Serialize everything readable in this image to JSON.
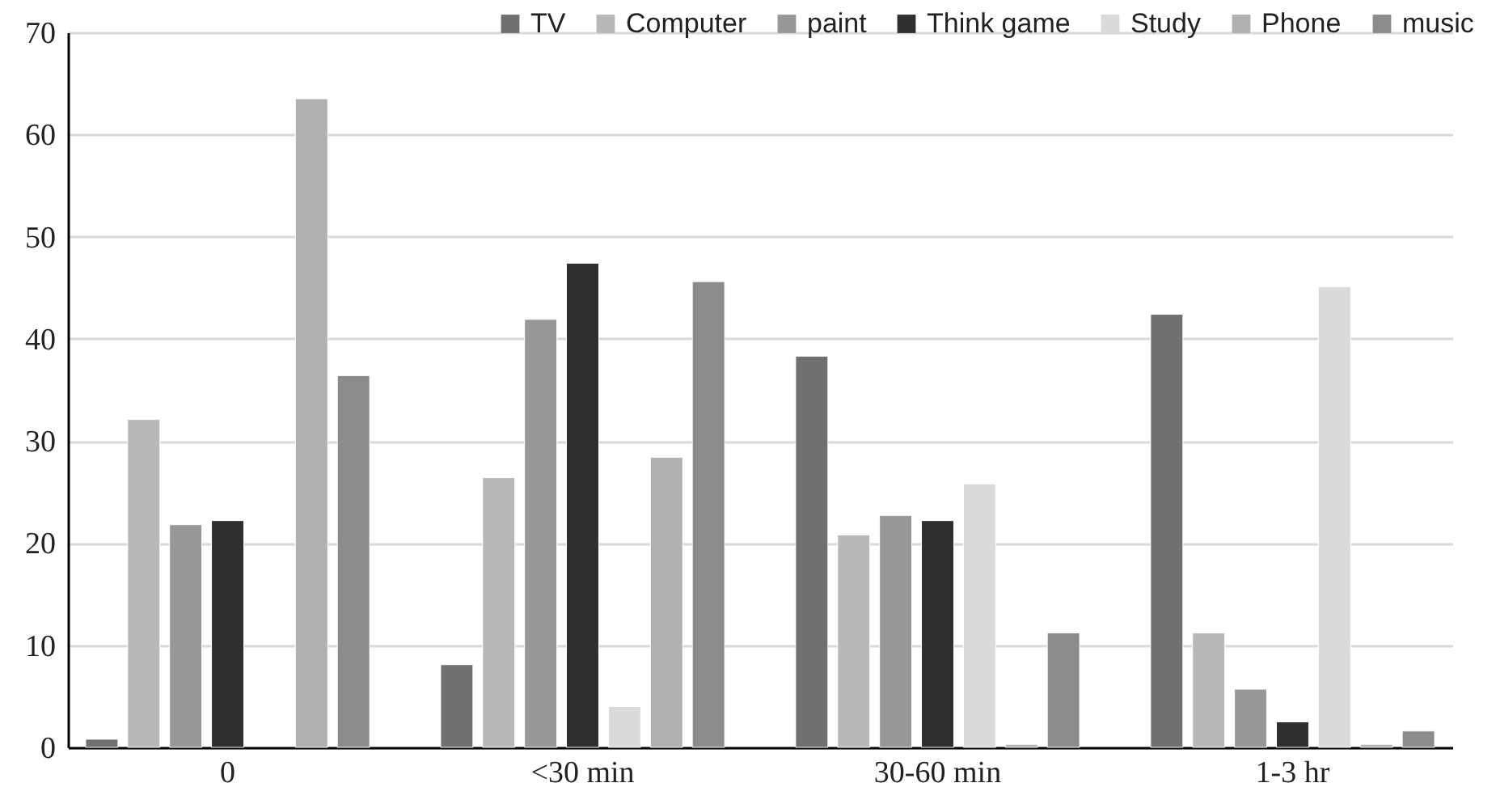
{
  "chart_data": {
    "type": "bar",
    "categories": [
      "0",
      "<30 min",
      "30-60 min",
      "1-3 hr"
    ],
    "series": [
      {
        "name": "TV",
        "color": "#707070",
        "values": [
          0.8,
          8.1,
          38.3,
          42.4
        ]
      },
      {
        "name": "Computer",
        "color": "#b8b8b8",
        "values": [
          32.1,
          26.4,
          20.8,
          11.2
        ]
      },
      {
        "name": "paint",
        "color": "#989898",
        "values": [
          21.8,
          41.9,
          22.7,
          5.7
        ]
      },
      {
        "name": "Think game",
        "color": "#2f2f2f",
        "values": [
          22.2,
          47.4,
          22.2,
          2.5
        ]
      },
      {
        "name": "Study",
        "color": "#dadada",
        "values": [
          null,
          4.0,
          25.8,
          45.1
        ]
      },
      {
        "name": "Phone",
        "color": "#b0b0b0",
        "values": [
          63.5,
          28.4,
          0.3,
          0.3
        ]
      },
      {
        "name": "music",
        "color": "#8c8c8c",
        "values": [
          36.4,
          45.6,
          11.2,
          1.6
        ]
      }
    ],
    "ylim": [
      0,
      70
    ],
    "yticks": [
      0,
      10,
      20,
      30,
      40,
      50,
      60,
      70
    ],
    "grid": "y",
    "legend": "top right"
  }
}
